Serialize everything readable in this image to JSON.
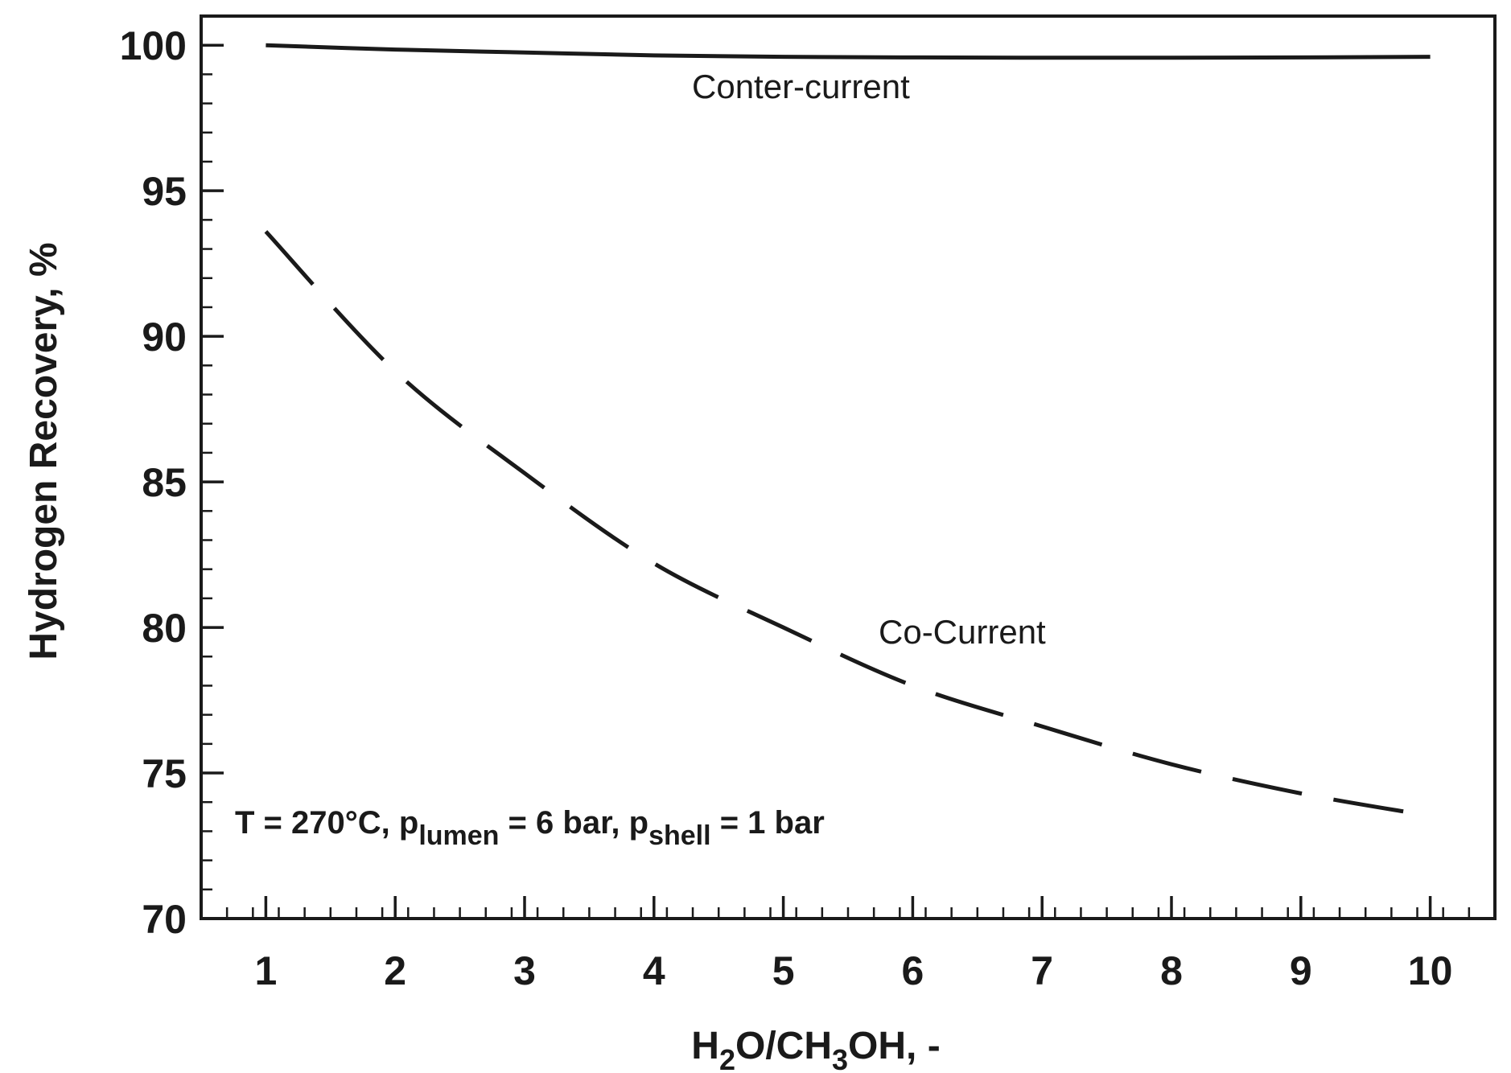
{
  "chart_data": {
    "type": "line",
    "xlabel": "H2O/CH3OH, -",
    "xlabel_parts": [
      {
        "t": "H",
        "sub": false
      },
      {
        "t": "2",
        "sub": true
      },
      {
        "t": "O/CH",
        "sub": false
      },
      {
        "t": "3",
        "sub": true
      },
      {
        "t": "OH, -",
        "sub": false
      }
    ],
    "ylabel": "Hydrogen Recovery, %",
    "xlim": [
      0.5,
      10.5
    ],
    "ylim": [
      70,
      101
    ],
    "x_ticks": [
      1,
      2,
      3,
      4,
      5,
      6,
      7,
      8,
      9,
      10
    ],
    "y_ticks": [
      70,
      75,
      80,
      85,
      90,
      95,
      100
    ],
    "x_minor_step": 0.2,
    "y_minor_step": 1,
    "grid": false,
    "series": [
      {
        "name": "Conter-current",
        "style": "solid",
        "color": "#1a1a1a",
        "x": [
          1,
          2,
          3,
          4,
          5,
          6,
          7,
          8,
          9,
          10
        ],
        "values": [
          100.0,
          99.85,
          99.75,
          99.65,
          99.6,
          99.58,
          99.57,
          99.57,
          99.58,
          99.6
        ]
      },
      {
        "name": "Co-Current",
        "style": "dashed",
        "color": "#1a1a1a",
        "x": [
          1,
          2,
          3,
          4,
          5,
          6,
          7,
          8,
          9,
          9.9
        ],
        "values": [
          93.6,
          88.8,
          85.3,
          82.2,
          80.0,
          78.0,
          76.6,
          75.3,
          74.3,
          73.6
        ]
      }
    ],
    "annotation": {
      "parts": [
        {
          "t": "T = 270°C, p",
          "sub": false
        },
        {
          "t": "lumen",
          "sub": true
        },
        {
          "t": " = 6 bar, p",
          "sub": false
        },
        {
          "t": "shell",
          "sub": true
        },
        {
          "t": " = 1 bar",
          "sub": false
        }
      ]
    }
  }
}
